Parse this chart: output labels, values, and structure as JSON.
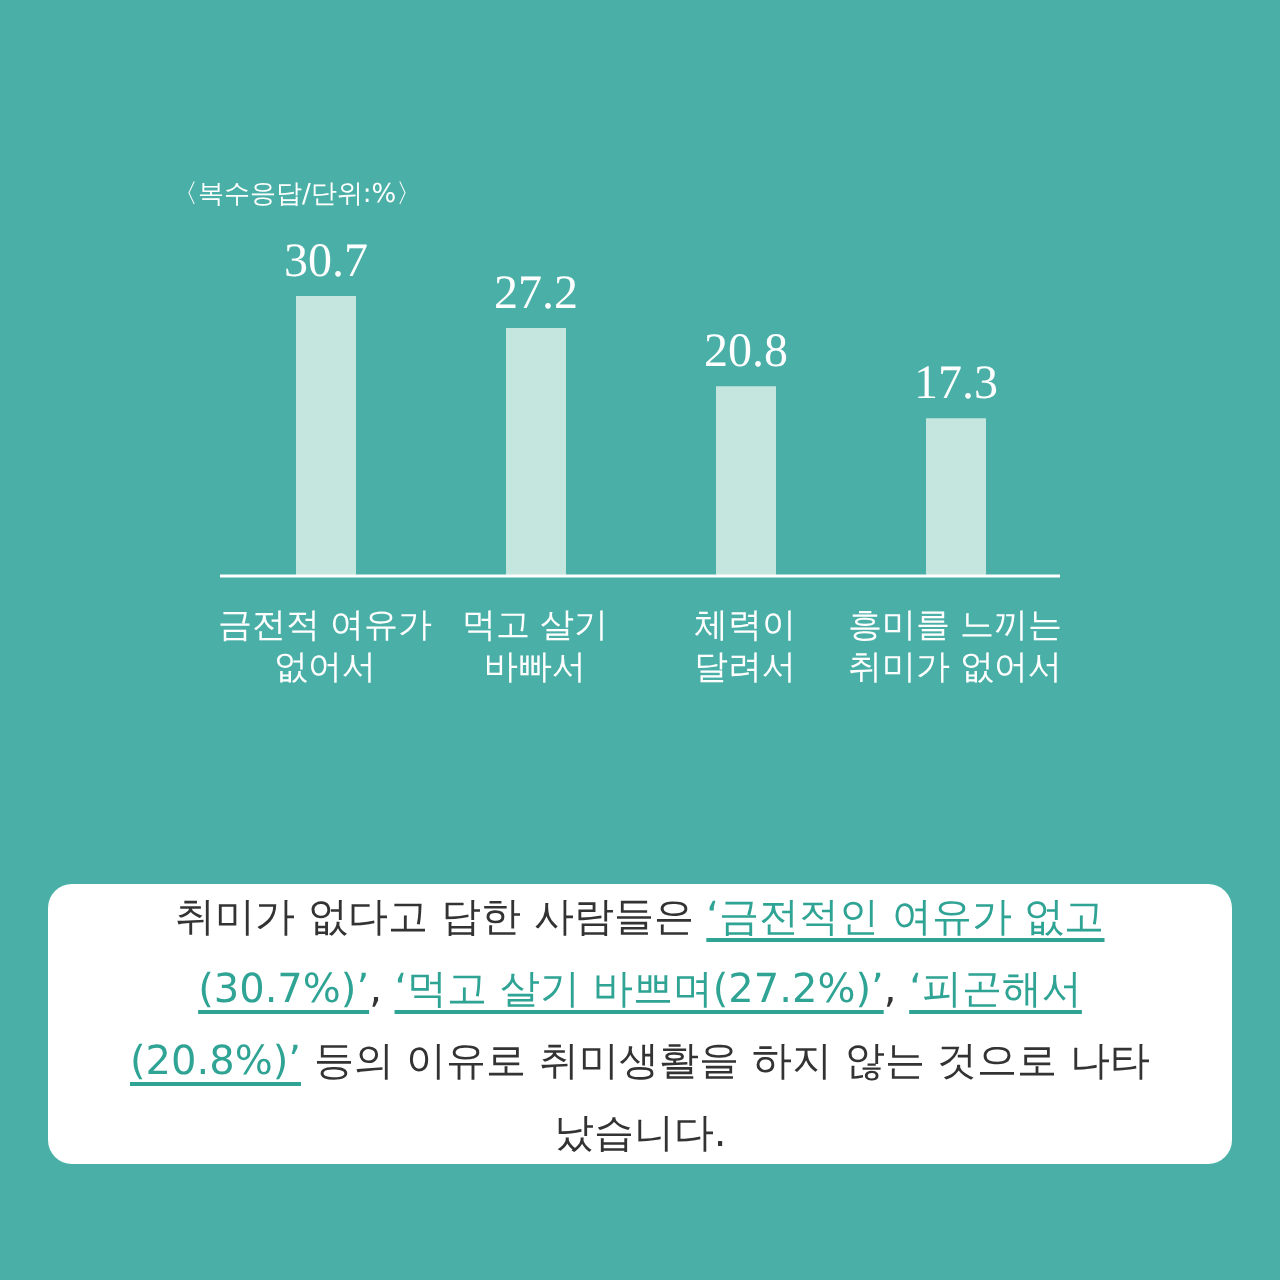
{
  "chart_data": {
    "type": "bar",
    "subtitle": "〈복수응답/단위:%〉",
    "categories": [
      "금전적 여유가 없어서",
      "먹고 살기 바빠서",
      "체력이 달려서",
      "흥미를 느끼는 취미가 없어서"
    ],
    "values": [
      30.7,
      27.2,
      20.8,
      17.3
    ],
    "color": "#c4e6df",
    "data_labels": true,
    "grid": false,
    "legend": false,
    "annotations": [
      "취미가 없다고 답한 사람들은 ‘금전적인 여유가 없고(30.7%)’, ‘먹고 살기 바쁘며(27.2%)’, ‘피곤해서(20.8%)’ 등의 이유로 취미생활을 하지 않는 것으로 나타났습니다."
    ]
  }
}
